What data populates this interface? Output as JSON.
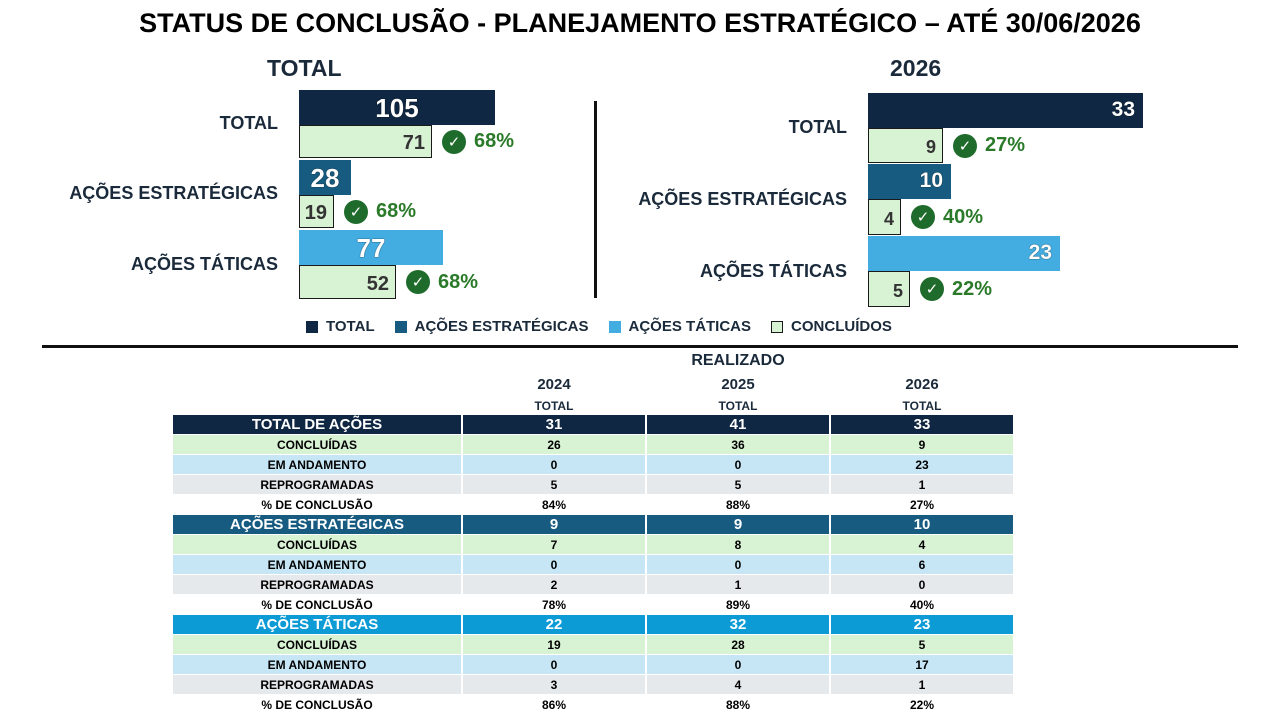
{
  "title": "STATUS DE CONCLUSÃO - PLANEJAMENTO ESTRATÉGICO – ATÉ 30/06/2026",
  "chart_data": [
    {
      "type": "bar",
      "orientation": "horizontal",
      "title": "TOTAL",
      "categories": [
        "TOTAL",
        "AÇÕES ESTRATÉGICAS",
        "AÇÕES TÁTICAS"
      ],
      "series": [
        {
          "name": "TOTAL",
          "values": [
            105,
            null,
            null
          ]
        },
        {
          "name": "AÇÕES ESTRATÉGICAS",
          "values": [
            null,
            28,
            null
          ]
        },
        {
          "name": "AÇÕES TÁTICAS",
          "values": [
            null,
            null,
            77
          ]
        },
        {
          "name": "CONCLUÍDOS",
          "values": [
            71,
            19,
            52
          ]
        }
      ],
      "percent_labels": [
        "68%",
        "68%",
        "68%"
      ],
      "xlim": [
        0,
        105
      ]
    },
    {
      "type": "bar",
      "orientation": "horizontal",
      "title": "2026",
      "categories": [
        "TOTAL",
        "AÇÕES ESTRATÉGICAS",
        "AÇÕES TÁTICAS"
      ],
      "series": [
        {
          "name": "TOTAL",
          "values": [
            33,
            null,
            null
          ]
        },
        {
          "name": "AÇÕES ESTRATÉGICAS",
          "values": [
            null,
            10,
            null
          ]
        },
        {
          "name": "AÇÕES TÁTICAS",
          "values": [
            null,
            null,
            23
          ]
        },
        {
          "name": "CONCLUÍDOS",
          "values": [
            9,
            4,
            5
          ]
        }
      ],
      "percent_labels": [
        "27%",
        "40%",
        "22%"
      ],
      "xlim": [
        0,
        33
      ]
    }
  ],
  "legend": [
    {
      "label": "TOTAL",
      "color": "#0f2742"
    },
    {
      "label": "AÇÕES ESTRATÉGICAS",
      "color": "#175c80"
    },
    {
      "label": "AÇÕES TÁTICAS",
      "color": "#43ace0"
    },
    {
      "label": "CONCLUÍDOS",
      "color": "#d8f2d4"
    }
  ],
  "table": {
    "group_header": "REALIZADO",
    "years": [
      "2024",
      "2025",
      "2026"
    ],
    "sub": "TOTAL",
    "sections": [
      {
        "header": "TOTAL DE AÇÕES",
        "totals": [
          "31",
          "41",
          "33"
        ],
        "rows": [
          {
            "label": "CONCLUÍDAS",
            "values": [
              "26",
              "36",
              "9"
            ]
          },
          {
            "label": "EM ANDAMENTO",
            "values": [
              "0",
              "0",
              "23"
            ]
          },
          {
            "label": "REPROGRAMADAS",
            "values": [
              "5",
              "5",
              "1"
            ]
          },
          {
            "label": "% DE CONCLUSÃO",
            "values": [
              "84%",
              "88%",
              "27%"
            ]
          }
        ]
      },
      {
        "header": "AÇÕES ESTRATÉGICAS",
        "totals": [
          "9",
          "9",
          "10"
        ],
        "rows": [
          {
            "label": "CONCLUÍDAS",
            "values": [
              "7",
              "8",
              "4"
            ]
          },
          {
            "label": "EM ANDAMENTO",
            "values": [
              "0",
              "0",
              "6"
            ]
          },
          {
            "label": "REPROGRAMADAS",
            "values": [
              "2",
              "1",
              "0"
            ]
          },
          {
            "label": "% DE CONCLUSÃO",
            "values": [
              "78%",
              "89%",
              "40%"
            ]
          }
        ]
      },
      {
        "header": "AÇÕES TÁTICAS",
        "totals": [
          "22",
          "32",
          "23"
        ],
        "rows": [
          {
            "label": "CONCLUÍDAS",
            "values": [
              "19",
              "28",
              "5"
            ]
          },
          {
            "label": "EM ANDAMENTO",
            "values": [
              "0",
              "0",
              "17"
            ]
          },
          {
            "label": "REPROGRAMADAS",
            "values": [
              "3",
              "4",
              "1"
            ]
          },
          {
            "label": "% DE CONCLUSÃO",
            "values": [
              "86%",
              "88%",
              "22%"
            ]
          }
        ]
      }
    ]
  }
}
